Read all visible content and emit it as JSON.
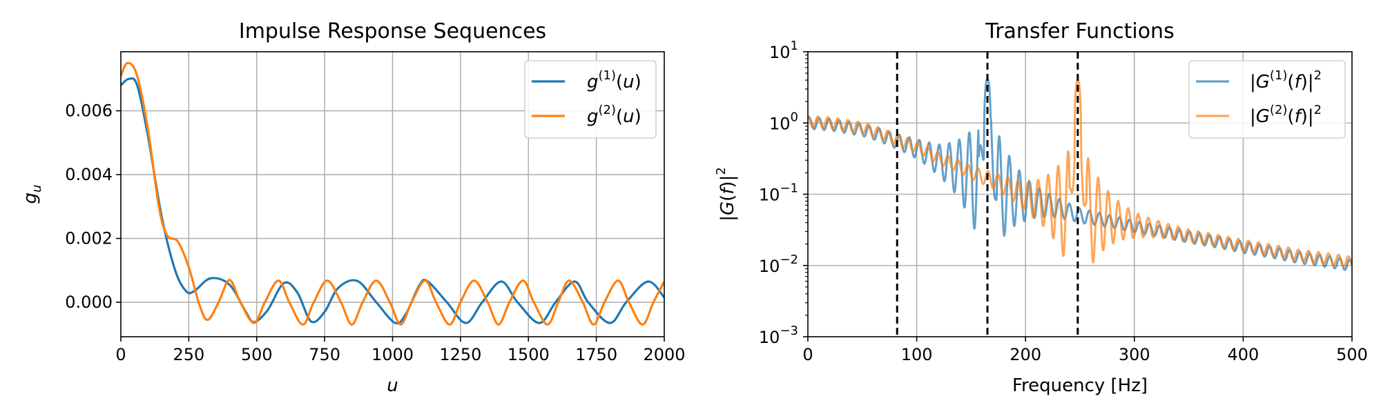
{
  "chart_data": [
    {
      "type": "line",
      "title": "Impulse Response Sequences",
      "xlabel": "u",
      "ylabel": "g_u",
      "xlim": [
        0,
        2000
      ],
      "ylim": [
        -0.00108,
        0.00785
      ],
      "x_ticks": [
        "0",
        "250",
        "500",
        "750",
        "1000",
        "1250",
        "1500",
        "1750",
        "2000"
      ],
      "y_ticks": [
        "0.000",
        "0.002",
        "0.004",
        "0.006"
      ],
      "grid": true,
      "legend_position": "top-right",
      "series": [
        {
          "name": "g(1)(u)",
          "color": "#1f77b4",
          "points": [
            [
              0,
              0.0068
            ],
            [
              30,
              0.007
            ],
            [
              60,
              0.0068
            ],
            [
              100,
              0.0052
            ],
            [
              150,
              0.0027
            ],
            [
              200,
              0.001
            ],
            [
              240,
              0.00035
            ],
            [
              270,
              0.00035
            ],
            [
              330,
              0.00075
            ],
            [
              400,
              0.00055
            ],
            [
              460,
              -0.0003
            ],
            [
              490,
              -0.00062
            ],
            [
              540,
              -0.00025
            ],
            [
              600,
              0.0006
            ],
            [
              650,
              0.0003
            ],
            [
              700,
              -0.0006
            ],
            [
              750,
              -0.0003
            ],
            [
              800,
              0.00045
            ],
            [
              870,
              0.00067
            ],
            [
              940,
              0.0
            ],
            [
              1010,
              -0.00065
            ],
            [
              1050,
              -0.00035
            ],
            [
              1100,
              0.00055
            ],
            [
              1130,
              0.00065
            ],
            [
              1200,
              0.0
            ],
            [
              1270,
              -0.00065
            ],
            [
              1330,
              0.0
            ],
            [
              1400,
              0.00065
            ],
            [
              1460,
              0.0
            ],
            [
              1540,
              -0.00065
            ],
            [
              1600,
              0.0
            ],
            [
              1670,
              0.00065
            ],
            [
              1720,
              0.0
            ],
            [
              1800,
              -0.00065
            ],
            [
              1860,
              0.0
            ],
            [
              1940,
              0.00065
            ],
            [
              2000,
              0.00015
            ]
          ]
        },
        {
          "name": "g(2)(u)",
          "color": "#ff7f0e",
          "points": [
            [
              0,
              0.0071
            ],
            [
              25,
              0.0075
            ],
            [
              60,
              0.0071
            ],
            [
              100,
              0.0054
            ],
            [
              140,
              0.003
            ],
            [
              170,
              0.0021
            ],
            [
              210,
              0.0019
            ],
            [
              250,
              0.0011
            ],
            [
              290,
              -0.0001
            ],
            [
              320,
              -0.00055
            ],
            [
              360,
              0.0
            ],
            [
              400,
              0.0007
            ],
            [
              440,
              0.0
            ],
            [
              490,
              -0.00065
            ],
            [
              530,
              0.0
            ],
            [
              580,
              0.00068
            ],
            [
              620,
              0.0
            ],
            [
              670,
              -0.0007
            ],
            [
              710,
              0.0
            ],
            [
              760,
              0.00068
            ],
            [
              810,
              0.0
            ],
            [
              850,
              -0.0007
            ],
            [
              890,
              0.0
            ],
            [
              940,
              0.00068
            ],
            [
              990,
              0.0
            ],
            [
              1030,
              -0.0007
            ],
            [
              1070,
              0.0
            ],
            [
              1120,
              0.00068
            ],
            [
              1160,
              0.0
            ],
            [
              1210,
              -0.0007
            ],
            [
              1250,
              0.0
            ],
            [
              1300,
              0.00068
            ],
            [
              1350,
              0.0
            ],
            [
              1390,
              -0.0007
            ],
            [
              1430,
              0.0
            ],
            [
              1480,
              0.00068
            ],
            [
              1520,
              0.0
            ],
            [
              1570,
              -0.0007
            ],
            [
              1610,
              0.0
            ],
            [
              1650,
              0.00068
            ],
            [
              1700,
              0.0
            ],
            [
              1740,
              -0.0007
            ],
            [
              1780,
              0.0
            ],
            [
              1830,
              0.00068
            ],
            [
              1870,
              0.0
            ],
            [
              1920,
              -0.0007
            ],
            [
              1960,
              0.0
            ],
            [
              2000,
              0.00065
            ]
          ]
        }
      ]
    },
    {
      "type": "line",
      "title": "Transfer Functions",
      "xlabel": "Frequency [Hz]",
      "ylabel": "|G(f)|^2",
      "xlim": [
        0,
        500
      ],
      "ylim": [
        0.001,
        10
      ],
      "yscale": "log",
      "x_ticks": [
        "0",
        "100",
        "200",
        "300",
        "400",
        "500"
      ],
      "y_ticks": [
        "10^1",
        "10^0",
        "10^-1",
        "10^-2",
        "10^-3"
      ],
      "grid": true,
      "legend_position": "top-right",
      "vertical_lines": [
        82,
        165,
        248
      ],
      "series": [
        {
          "name": "|G(1)(f)|^2",
          "color": "#1f77b4",
          "alpha": 0.7,
          "baseline": [
            [
              0,
              1.0
            ],
            [
              20,
              0.95
            ],
            [
              50,
              0.8
            ],
            [
              82,
              0.55
            ],
            [
              120,
              0.3
            ],
            [
              150,
              0.18
            ],
            [
              165,
              0.13
            ],
            [
              200,
              0.085
            ],
            [
              250,
              0.05
            ],
            [
              300,
              0.035
            ],
            [
              350,
              0.025
            ],
            [
              400,
              0.018
            ],
            [
              450,
              0.013
            ],
            [
              500,
              0.01
            ]
          ],
          "peak": {
            "center": 165,
            "height": 4.2
          }
        },
        {
          "name": "|G(2)(f)|^2",
          "color": "#ff7f0e",
          "alpha": 0.7,
          "baseline": [
            [
              0,
              1.05
            ],
            [
              20,
              1.0
            ],
            [
              50,
              0.85
            ],
            [
              82,
              0.58
            ],
            [
              120,
              0.32
            ],
            [
              150,
              0.2
            ],
            [
              200,
              0.09
            ],
            [
              248,
              0.055
            ],
            [
              300,
              0.037
            ],
            [
              350,
              0.026
            ],
            [
              400,
              0.019
            ],
            [
              450,
              0.014
            ],
            [
              500,
              0.011
            ]
          ],
          "peak": {
            "center": 248,
            "height": 4.0
          }
        }
      ]
    }
  ]
}
